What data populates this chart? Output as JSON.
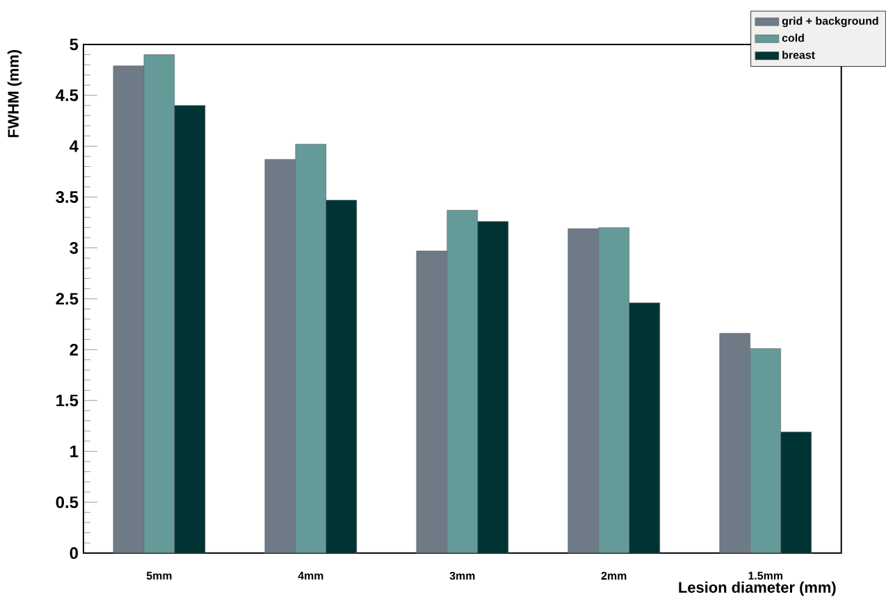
{
  "chart_data": {
    "type": "bar",
    "xlabel": "Lesion diameter (mm)",
    "ylabel": "FWHM (mm)",
    "categories": [
      "5mm",
      "4mm",
      "3mm",
      "2mm",
      "1.5mm"
    ],
    "series": [
      {
        "name": "grid + background",
        "color": "#6e7a86",
        "values": [
          4.79,
          3.87,
          2.97,
          3.19,
          2.16
        ]
      },
      {
        "name": "cold",
        "color": "#649a98",
        "values": [
          4.9,
          4.02,
          3.37,
          3.2,
          2.01
        ]
      },
      {
        "name": "breast",
        "color": "#003333",
        "values": [
          4.4,
          3.47,
          3.26,
          2.46,
          1.19
        ]
      }
    ],
    "ylim": [
      0,
      5
    ],
    "yticks": [
      0,
      0.5,
      1,
      1.5,
      2,
      2.5,
      3,
      3.5,
      4,
      4.5,
      5
    ],
    "grid": false,
    "legend": "top right"
  }
}
